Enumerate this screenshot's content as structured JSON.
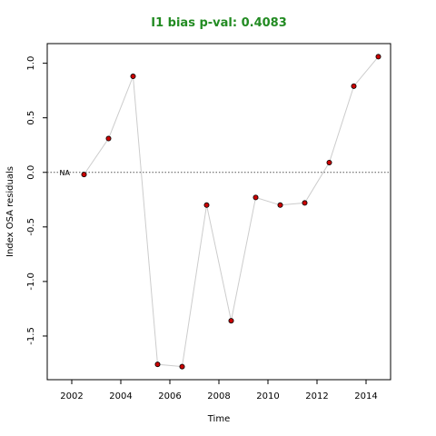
{
  "chart_data": {
    "type": "line",
    "title": "I1 bias p-val: 0.4083",
    "xlabel": "Time",
    "ylabel": "Index OSA residuals",
    "xlim": [
      2001,
      2015
    ],
    "ylim": [
      -1.9,
      1.18
    ],
    "xticks": [
      2002,
      2004,
      2006,
      2008,
      2010,
      2012,
      2014
    ],
    "yticks": [
      -1.5,
      -1.0,
      -0.5,
      0.0,
      0.5,
      1.0
    ],
    "ytick_labels": [
      "-1.5",
      "-1.0",
      "-0.5",
      "0.0",
      "0.5",
      "1.0"
    ],
    "reference_line": {
      "y": 0,
      "style": "dotted"
    },
    "annotation": {
      "text": "NA",
      "x": 2001.5,
      "y": 0
    },
    "series": [
      {
        "x": [
          2002.5,
          2003.5,
          2004.5,
          2005.5,
          2006.5,
          2007.5,
          2008.5,
          2009.5,
          2010.5,
          2011.5,
          2012.5,
          2013.5,
          2014.5
        ],
        "y": [
          -0.02,
          0.31,
          0.88,
          -1.76,
          -1.78,
          -0.3,
          -1.36,
          -0.23,
          -0.3,
          -0.28,
          0.09,
          0.79,
          1.06
        ]
      }
    ],
    "colors": {
      "title": "#228b22",
      "line": "#cccccc",
      "marker_fill": "#cc0000",
      "marker_stroke": "#000000"
    }
  }
}
